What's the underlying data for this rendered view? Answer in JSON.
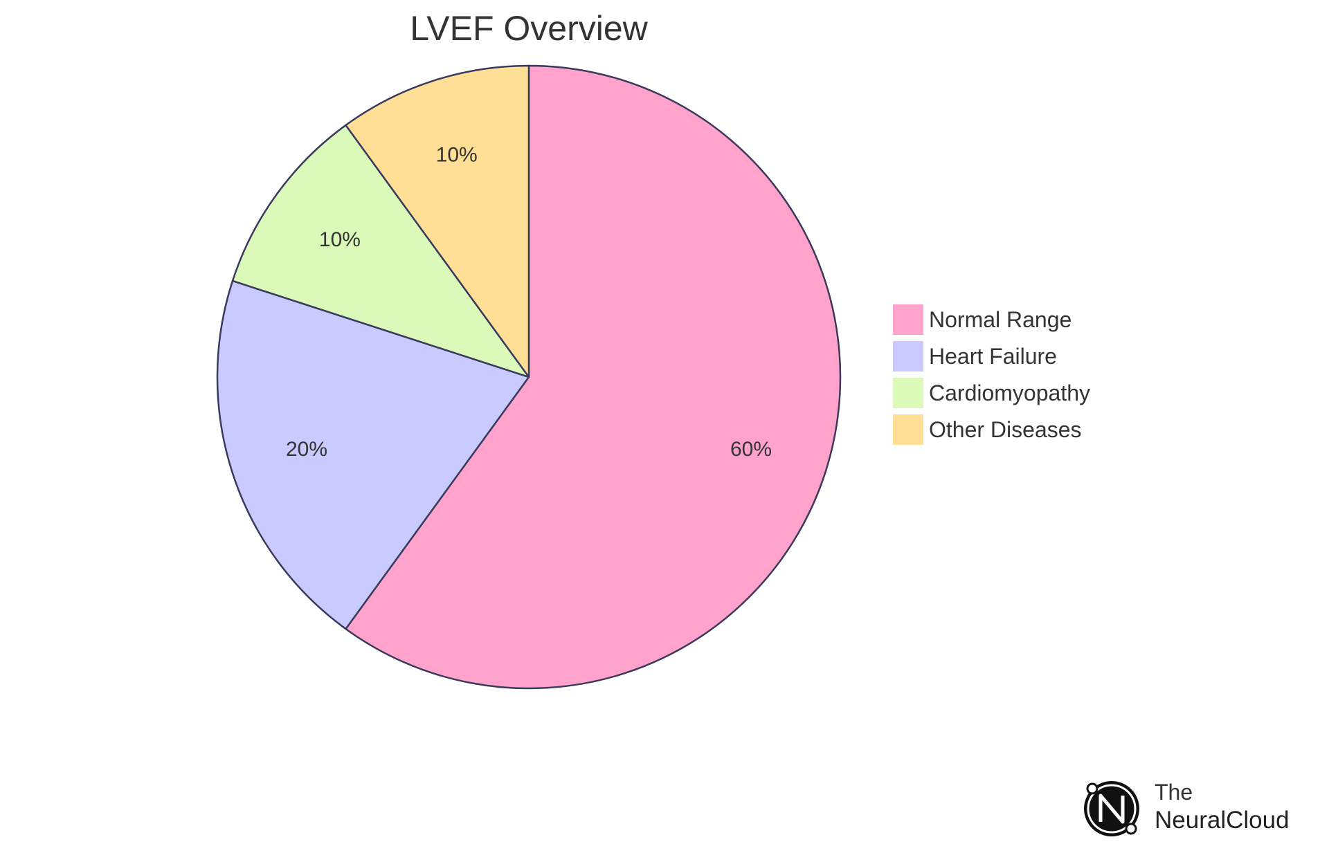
{
  "chart_data": {
    "type": "pie",
    "title": "LVEF Overview",
    "slices": [
      {
        "name": "Normal Range",
        "value": 60,
        "label": "60%",
        "color": "#FFA3CD"
      },
      {
        "name": "Heart Failure",
        "value": 20,
        "label": "20%",
        "color": "#C9CBFF"
      },
      {
        "name": "Cardiomyopathy",
        "value": 10,
        "label": "10%",
        "color": "#DBFABA"
      },
      {
        "name": "Other Diseases",
        "value": 10,
        "label": "10%",
        "color": "#FFDE96"
      }
    ],
    "start_angle": "top",
    "direction": "clockwise",
    "legend_position": "right",
    "stroke_color": "#3A3A5C"
  },
  "branding": {
    "logo_icon": "neuralcloud-n-icon",
    "line1": "The",
    "line2": "NeuralCloud"
  }
}
